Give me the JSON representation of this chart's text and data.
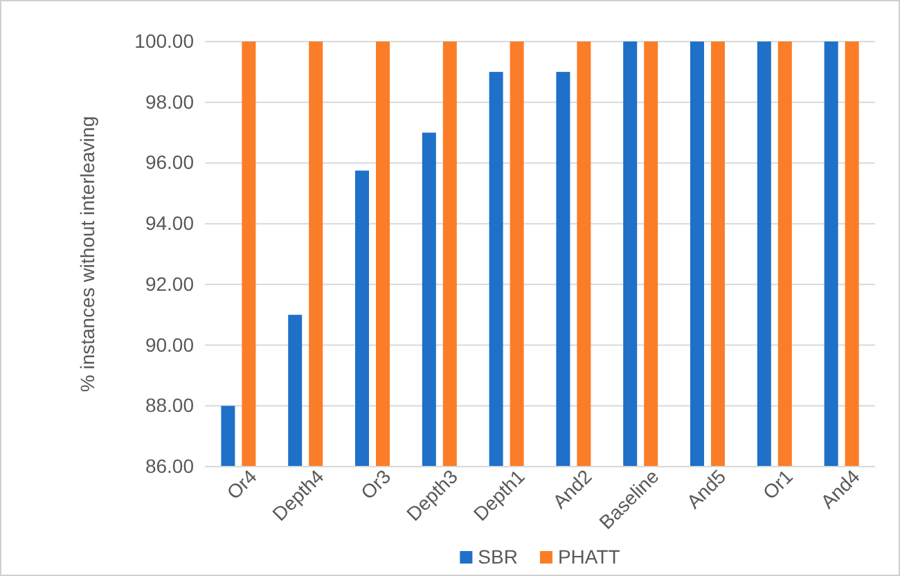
{
  "chart_data": {
    "type": "bar",
    "ylabel": "% instances without interleaving",
    "categories": [
      "Or4",
      "Depth4",
      "Or3",
      "Depth3",
      "Depth1",
      "And2",
      "Baseline",
      "And5",
      "Or1",
      "And4"
    ],
    "series": [
      {
        "name": "SBR",
        "color": "#1f70c8",
        "values": [
          88,
          91,
          95.75,
          97,
          99,
          99,
          100,
          100,
          100,
          100
        ]
      },
      {
        "name": "PHATT",
        "color": "#fb7d28",
        "values": [
          100,
          100,
          100,
          100,
          100,
          100,
          100,
          100,
          100,
          100
        ]
      }
    ],
    "ylim": [
      86,
      100
    ],
    "yticks": [
      {
        "value": 86,
        "label": "86.00"
      },
      {
        "value": 88,
        "label": "88.00"
      },
      {
        "value": 90,
        "label": "90.00"
      },
      {
        "value": 92,
        "label": "92.00"
      },
      {
        "value": 94,
        "label": "94.00"
      },
      {
        "value": 96,
        "label": "96.00"
      },
      {
        "value": 98,
        "label": "98.00"
      },
      {
        "value": 100,
        "label": "100.00"
      }
    ],
    "grid": "y",
    "legend": "bottom"
  }
}
